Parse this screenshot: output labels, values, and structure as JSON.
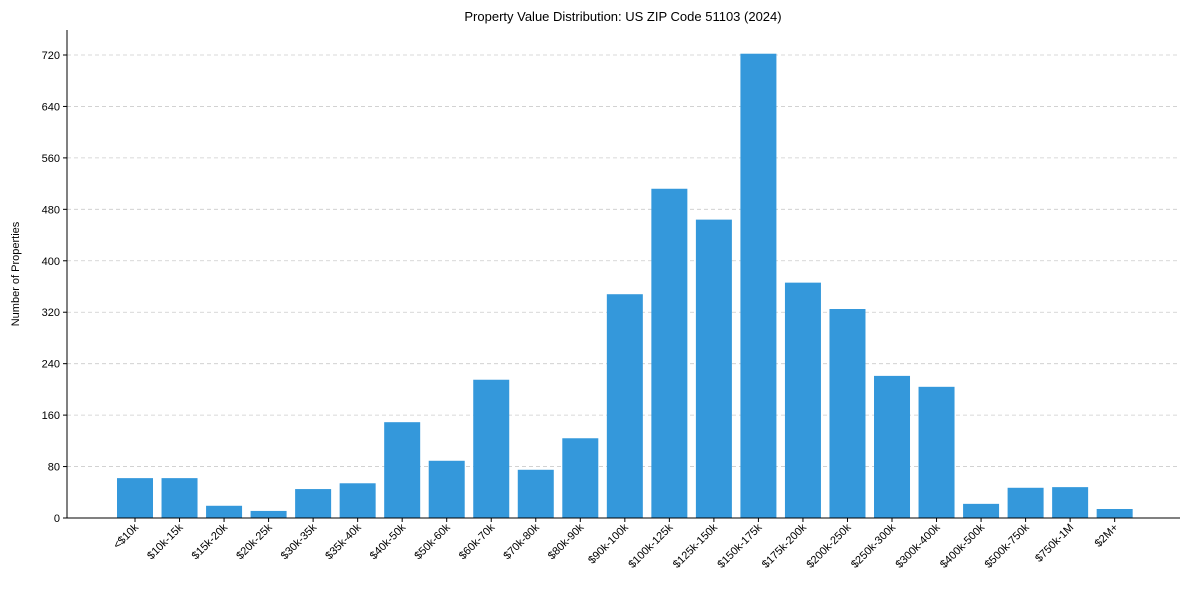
{
  "chart_data": {
    "type": "bar",
    "title": "Property Value Distribution: US ZIP Code 51103 (2024)",
    "xlabel": "",
    "ylabel": "Number of Properties",
    "categories": [
      "<$10k",
      "$10k-15k",
      "$15k-20k",
      "$20k-25k",
      "$30k-35k",
      "$35k-40k",
      "$40k-50k",
      "$50k-60k",
      "$60k-70k",
      "$70k-80k",
      "$80k-90k",
      "$90k-100k",
      "$100k-125k",
      "$125k-150k",
      "$150k-175k",
      "$175k-200k",
      "$200k-250k",
      "$250k-300k",
      "$300k-400k",
      "$400k-500k",
      "$500k-750k",
      "$750k-1M",
      "$2M+"
    ],
    "values": [
      62,
      62,
      19,
      11,
      45,
      54,
      149,
      89,
      215,
      75,
      124,
      348,
      512,
      464,
      722,
      366,
      325,
      221,
      204,
      22,
      47,
      48,
      14
    ],
    "yticks": [
      0,
      80,
      160,
      240,
      320,
      400,
      480,
      560,
      640,
      720
    ],
    "ylim": [
      0,
      758
    ],
    "grid": "y-dashed",
    "legend": null,
    "bar_color": "#3498db",
    "grid_color": "#cccccc",
    "xtick_rotation": -45
  }
}
